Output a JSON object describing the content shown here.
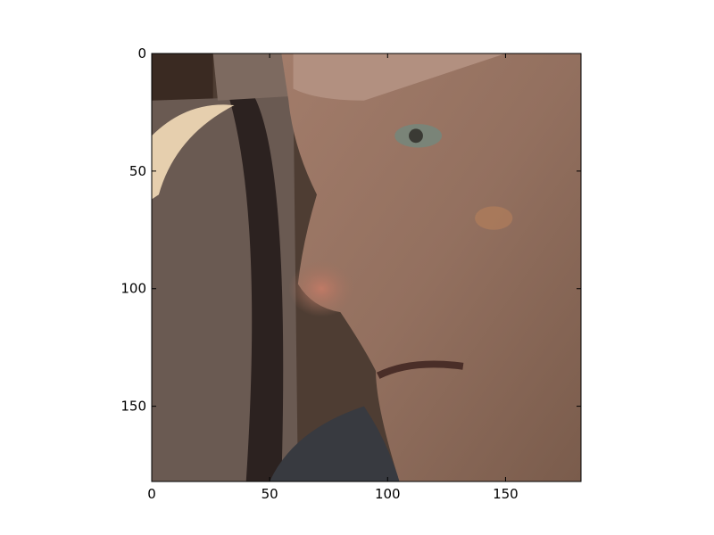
{
  "chart_data": {
    "type": "image",
    "xlim": [
      0,
      182
    ],
    "ylim": [
      182,
      0
    ],
    "xticks": [
      0,
      50,
      100,
      150
    ],
    "yticks": [
      0,
      50,
      100,
      150
    ]
  }
}
